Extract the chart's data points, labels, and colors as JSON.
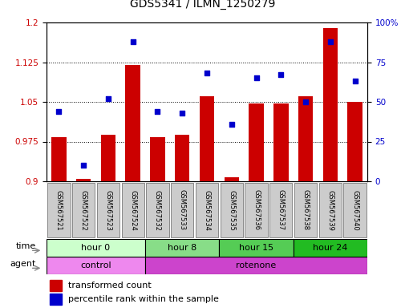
{
  "title": "GDS5341 / ILMN_1250279",
  "samples": [
    "GSM567521",
    "GSM567522",
    "GSM567523",
    "GSM567524",
    "GSM567532",
    "GSM567533",
    "GSM567534",
    "GSM567535",
    "GSM567536",
    "GSM567537",
    "GSM567538",
    "GSM567539",
    "GSM567540"
  ],
  "bar_values": [
    0.984,
    0.905,
    0.988,
    1.12,
    0.984,
    0.988,
    1.06,
    0.908,
    1.047,
    1.047,
    1.06,
    1.19,
    1.05
  ],
  "scatter_values": [
    44,
    10,
    52,
    88,
    44,
    43,
    68,
    36,
    65,
    67,
    50,
    88,
    63
  ],
  "ylim_left": [
    0.9,
    1.2
  ],
  "ylim_right": [
    0,
    100
  ],
  "yticks_left": [
    0.9,
    0.975,
    1.05,
    1.125,
    1.2
  ],
  "yticks_right": [
    0,
    25,
    50,
    75,
    100
  ],
  "bar_color": "#cc0000",
  "scatter_color": "#0000cc",
  "bar_baseline": 0.9,
  "time_groups": [
    {
      "label": "hour 0",
      "start": 0,
      "end": 4,
      "color": "#ccffcc"
    },
    {
      "label": "hour 8",
      "start": 4,
      "end": 7,
      "color": "#88dd88"
    },
    {
      "label": "hour 15",
      "start": 7,
      "end": 10,
      "color": "#55cc55"
    },
    {
      "label": "hour 24",
      "start": 10,
      "end": 13,
      "color": "#22bb22"
    }
  ],
  "agent_groups": [
    {
      "label": "control",
      "start": 0,
      "end": 4,
      "color": "#ee88ee"
    },
    {
      "label": "rotenone",
      "start": 4,
      "end": 13,
      "color": "#cc44cc"
    }
  ],
  "legend_bar_label": "transformed count",
  "legend_scatter_label": "percentile rank within the sample",
  "time_label": "time",
  "agent_label": "agent",
  "tick_label_color_left": "#cc0000",
  "tick_label_color_right": "#0000cc",
  "bg_plot": "#ffffff",
  "bg_sample_row": "#cccccc"
}
